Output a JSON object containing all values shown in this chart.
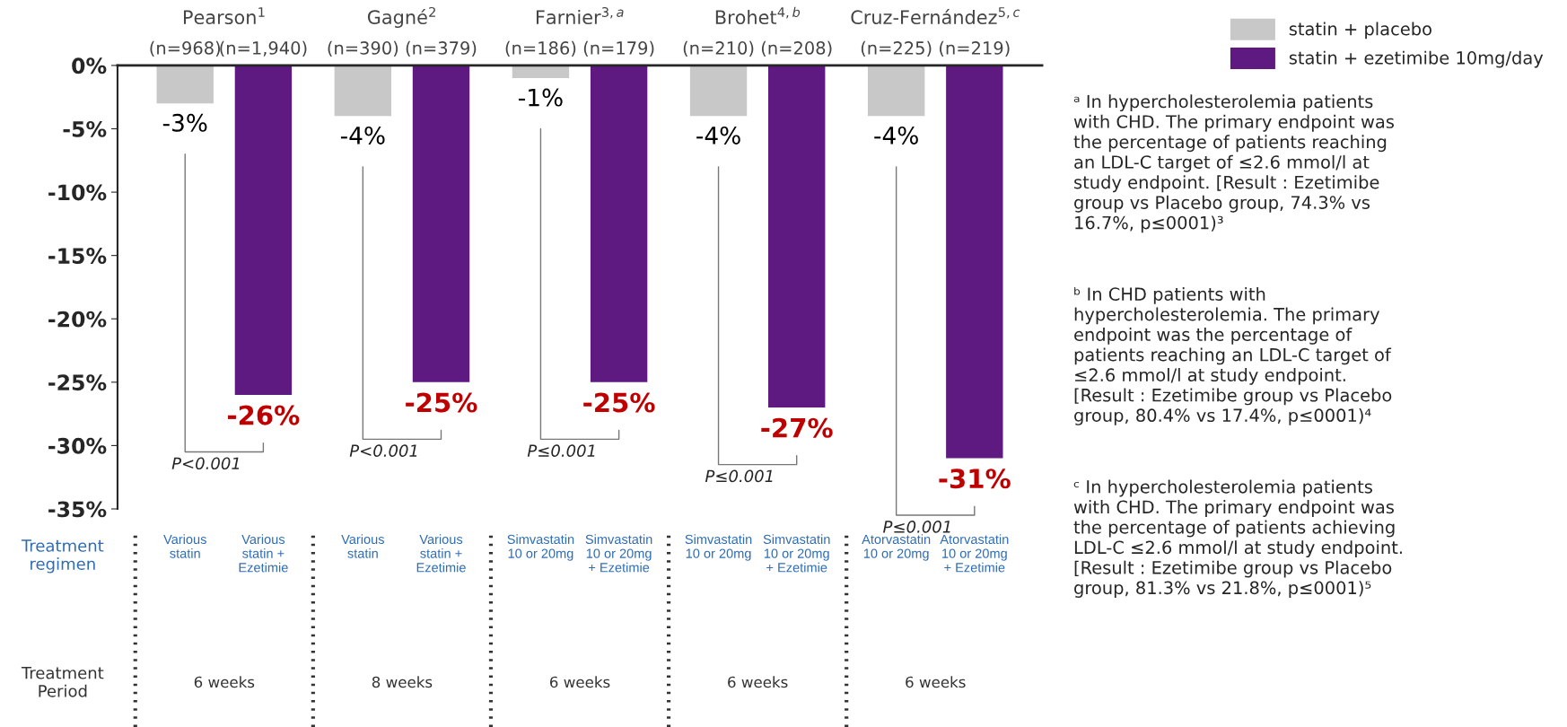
{
  "chart_data": {
    "type": "bar",
    "categories": [
      "Pearson$^{1}$",
      "Gagné$^{2}$",
      "Farnier$^{3,a}$",
      "Brohet$^{4,b}$",
      "Cruz-Fernández$^{5,c}$"
    ],
    "series": [
      {
        "name": "statin + placebo",
        "color": "#c8c8c8",
        "values": [
          -3,
          -4,
          -1,
          -4,
          -4
        ],
        "value_labels": [
          "-3%",
          "-4%",
          "-1%",
          "-4%",
          "-4%"
        ]
      },
      {
        "name": "statin + ezetimibe 10mg/day",
        "color": "#5e1a80",
        "values": [
          -26,
          -25,
          -25,
          -27,
          -31
        ],
        "value_labels": [
          "-26%",
          "-25%",
          "-25%",
          "-27%",
          "-31%"
        ]
      }
    ],
    "ylim": [
      -35,
      0
    ],
    "yticks": [
      {
        "value": 0,
        "label": "0%"
      },
      {
        "value": -5,
        "label": "-5%"
      },
      {
        "value": -10,
        "label": "-10%"
      },
      {
        "value": -15,
        "label": "-15%"
      },
      {
        "value": -20,
        "label": "-20%"
      },
      {
        "value": -25,
        "label": "-25%"
      },
      {
        "value": -30,
        "label": "-30%"
      },
      {
        "value": -35,
        "label": "-35%"
      }
    ],
    "grid": false,
    "legend": "top right",
    "annotations": [
      "(n=968)",
      "(n=1,940)",
      "(n=390)",
      "(n=379)",
      "(n=186)",
      "(n=179)",
      "(n=210)",
      "(n=208)",
      "(n=225)",
      "(n=219)",
      "P<0.001",
      "P<0.001",
      "P≤0.001",
      "P≤0.001",
      "P≤0.001",
      "Treatment\nregimen",
      "Treatment\nPeriod",
      "Various\nstatin",
      "Various\nstatin +\nEzetimie",
      "Various\nstatin",
      "Various\nstatin +\nEzetimie",
      "Simvastatin\n10 or 20mg",
      "Simvastatin\n10 or 20mg\n+ Ezetimie",
      "Simvastatin\n10 or 20mg",
      "Simvastatin\n10 or 20mg\n+ Ezetimie",
      "Atorvastatin\n10 or 20mg",
      "Atorvastatin\n10 or 20mg\n+ Ezetimie",
      "6 weeks",
      "8 weeks",
      "6 weeks",
      "6 weeks",
      "6 weeks",
      "ᵃ In hypercholesterolemia patients\nwith CHD. The primary endpoint was\nthe percentage of patients reaching\nan LDL-C target of ≤2.6 mmol/l at\nstudy endpoint. [Result : Ezetimibe\ngroup vs Placebo group, 74.3% vs\n16.7%, p≤0001)³",
      "ᵇ In CHD patients with\nhypercholesterolemia. The primary\nendpoint was the percentage of\npatients reaching an LDL-C target of\n≤2.6 mmol/l at study endpoint.\n[Result : Ezetimibe group vs Placebo\ngroup, 80.4% vs 17.4%, p≤0001)⁴",
      "ᶜ In hypercholesterolemia patients\nwith CHD. The primary endpoint was\nthe percentage of patients achieving\nLDL-C ≤2.6 mmol/l at study endpoint.\n[Result : Ezetimibe group vs Placebo\ngroup, 81.3% vs 21.8%, p≤0001)⁵"
    ]
  }
}
